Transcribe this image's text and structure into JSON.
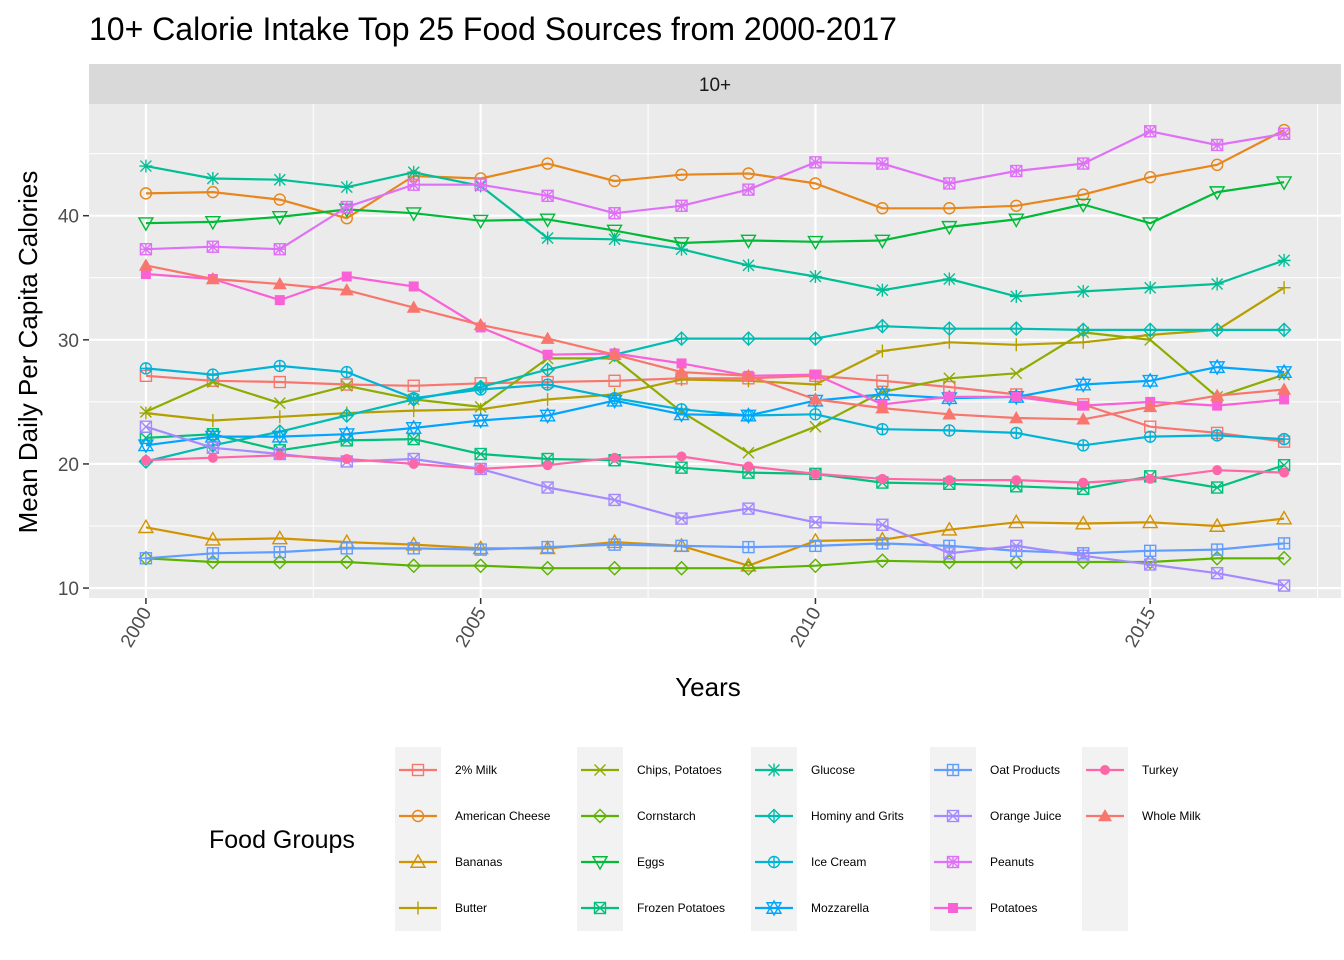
{
  "chart_data": {
    "type": "line",
    "title": "10+ Calorie Intake Top 25 Food Sources from 2000-2017",
    "facet_label": "10+",
    "xlabel": "Years",
    "ylabel": "Mean Daily Per Capita Calories",
    "xlim": [
      1999.15,
      2017.85
    ],
    "ylim": [
      9.2,
      49.0
    ],
    "x_ticks": [
      2000,
      2005,
      2010,
      2015
    ],
    "y_ticks": [
      10,
      20,
      30,
      40
    ],
    "grid": true,
    "legend": {
      "title": "Food Groups",
      "position": "bottom",
      "columns": 5,
      "rows": 4
    },
    "x": [
      2000,
      2001,
      2002,
      2003,
      2004,
      2005,
      2006,
      2007,
      2008,
      2009,
      2010,
      2011,
      2012,
      2013,
      2014,
      2015,
      2016,
      2017
    ],
    "series": [
      {
        "name": "2% Milk",
        "color": "#F8766D",
        "shape": "square",
        "values": [
          27.1,
          26.7,
          26.6,
          26.4,
          26.3,
          26.5,
          26.6,
          26.7,
          26.9,
          26.9,
          27.1,
          26.7,
          26.2,
          25.6,
          24.8,
          23.0,
          22.5,
          21.8
        ]
      },
      {
        "name": "American Cheese",
        "color": "#E7861B",
        "shape": "circle",
        "values": [
          41.8,
          41.9,
          41.3,
          39.8,
          43.2,
          43.0,
          44.2,
          42.8,
          43.3,
          43.4,
          42.6,
          40.6,
          40.6,
          40.8,
          41.7,
          43.1,
          44.1,
          46.9
        ]
      },
      {
        "name": "Bananas",
        "color": "#D39200",
        "shape": "triangle",
        "values": [
          14.9,
          13.9,
          14.0,
          13.7,
          13.5,
          13.2,
          13.2,
          13.7,
          13.4,
          11.8,
          13.8,
          13.9,
          14.7,
          15.3,
          15.2,
          15.3,
          15.0,
          15.6
        ]
      },
      {
        "name": "Butter",
        "color": "#B59F00",
        "shape": "plus",
        "values": [
          24.1,
          23.5,
          23.8,
          24.1,
          24.3,
          24.4,
          25.2,
          25.6,
          26.8,
          26.7,
          26.4,
          29.1,
          29.8,
          29.6,
          29.8,
          30.4,
          30.8,
          34.2
        ]
      },
      {
        "name": "Chips, Potatoes",
        "color": "#8EAB00",
        "shape": "cross",
        "values": [
          24.2,
          26.6,
          24.9,
          26.3,
          25.2,
          24.6,
          28.5,
          28.5,
          24.2,
          20.9,
          23.0,
          25.8,
          26.9,
          27.3,
          30.6,
          30.0,
          25.4,
          27.2
        ]
      },
      {
        "name": "Cornstarch",
        "color": "#5BB300",
        "shape": "diamond",
        "values": [
          12.4,
          12.1,
          12.1,
          12.1,
          11.8,
          11.8,
          11.6,
          11.6,
          11.6,
          11.6,
          11.8,
          12.2,
          12.1,
          12.1,
          12.1,
          12.1,
          12.4,
          12.4
        ]
      },
      {
        "name": "Eggs",
        "color": "#00BA38",
        "shape": "triangle-down",
        "values": [
          39.4,
          39.5,
          39.9,
          40.5,
          40.2,
          39.6,
          39.7,
          38.8,
          37.8,
          38.0,
          37.9,
          38.0,
          39.1,
          39.7,
          40.9,
          39.4,
          41.9,
          42.7
        ]
      },
      {
        "name": "Frozen Potatoes",
        "color": "#00C07B",
        "shape": "square-cross",
        "values": [
          22.1,
          22.4,
          21.1,
          21.9,
          22.0,
          20.8,
          20.4,
          20.3,
          19.7,
          19.3,
          19.2,
          18.5,
          18.4,
          18.2,
          18.0,
          19.0,
          18.1,
          19.9
        ]
      },
      {
        "name": "Glucose",
        "color": "#00BF96",
        "shape": "asterisk",
        "values": [
          44.0,
          43.0,
          42.9,
          42.3,
          43.5,
          42.4,
          38.2,
          38.1,
          37.3,
          36.0,
          35.1,
          34.0,
          34.9,
          33.5,
          33.9,
          34.2,
          34.5,
          36.4
        ]
      },
      {
        "name": "Hominy and Grits",
        "color": "#00BCB1",
        "shape": "diamond-plus",
        "values": [
          20.2,
          21.5,
          22.6,
          23.9,
          25.2,
          26.2,
          27.6,
          28.8,
          30.1,
          30.1,
          30.1,
          31.1,
          30.9,
          30.9,
          30.8,
          30.8,
          30.8,
          30.8
        ]
      },
      {
        "name": "Ice Cream",
        "color": "#00B4D8",
        "shape": "circle-plus",
        "values": [
          27.7,
          27.2,
          27.9,
          27.4,
          25.3,
          26.0,
          26.4,
          25.3,
          24.4,
          23.9,
          24.0,
          22.8,
          22.7,
          22.5,
          21.5,
          22.2,
          22.3,
          22.0
        ]
      },
      {
        "name": "Mozzarella",
        "color": "#00A5FF",
        "shape": "star",
        "values": [
          21.5,
          22.2,
          22.2,
          22.4,
          22.9,
          23.5,
          23.9,
          25.1,
          24.0,
          23.9,
          25.1,
          25.6,
          25.3,
          25.4,
          26.4,
          26.7,
          27.8,
          27.4
        ]
      },
      {
        "name": "Oat Products",
        "color": "#619CFF",
        "shape": "square-plus",
        "values": [
          12.4,
          12.8,
          12.9,
          13.2,
          13.2,
          13.1,
          13.3,
          13.5,
          13.4,
          13.3,
          13.4,
          13.6,
          13.4,
          13.0,
          12.8,
          13.0,
          13.1,
          13.6
        ]
      },
      {
        "name": "Orange Juice",
        "color": "#A58AFF",
        "shape": "square-x",
        "values": [
          23.0,
          21.3,
          20.8,
          20.2,
          20.4,
          19.6,
          18.1,
          17.1,
          15.6,
          16.4,
          15.3,
          15.1,
          12.8,
          13.4,
          12.6,
          11.9,
          11.2,
          10.2
        ]
      },
      {
        "name": "Peanuts",
        "color": "#DF70F8",
        "shape": "square-star",
        "values": [
          37.3,
          37.5,
          37.3,
          40.7,
          42.5,
          42.5,
          41.6,
          40.2,
          40.8,
          42.1,
          44.3,
          44.2,
          42.6,
          43.6,
          44.2,
          46.8,
          45.7,
          46.6
        ]
      },
      {
        "name": "Potatoes",
        "color": "#FB61D7",
        "shape": "square-filled",
        "values": [
          35.3,
          34.9,
          33.2,
          35.1,
          34.3,
          31.0,
          28.8,
          28.9,
          28.1,
          27.1,
          27.2,
          24.8,
          25.4,
          25.4,
          24.7,
          25.0,
          24.7,
          25.2
        ]
      },
      {
        "name": "Turkey",
        "color": "#FF66A8",
        "shape": "circle-filled",
        "values": [
          20.3,
          20.5,
          20.7,
          20.4,
          20.0,
          19.6,
          19.9,
          20.5,
          20.6,
          19.8,
          19.2,
          18.8,
          18.7,
          18.7,
          18.5,
          18.8,
          19.5,
          19.3
        ]
      },
      {
        "name": "Whole Milk",
        "color": "#F8766D",
        "shape": "triangle-filled",
        "values": [
          36.0,
          34.9,
          34.5,
          34.0,
          32.6,
          31.2,
          30.1,
          28.8,
          27.4,
          27.1,
          25.2,
          24.5,
          24.0,
          23.7,
          23.6,
          24.6,
          25.5,
          26.0
        ]
      }
    ]
  }
}
